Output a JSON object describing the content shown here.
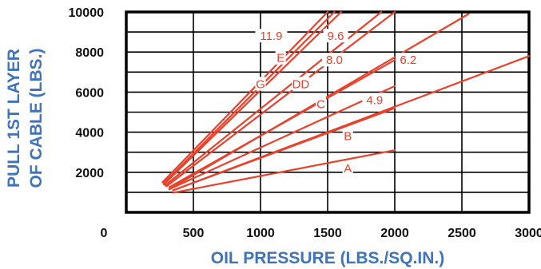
{
  "chart_data": {
    "type": "line",
    "xlabel": "OIL PRESSURE (LBS./SQ.IN.)",
    "ylabel_line1": "PULL 1ST LAYER",
    "ylabel_line2": "OF CABLE (LBS.)",
    "x_ticks": [
      "0",
      "500",
      "1000",
      "1500",
      "2000",
      "2500",
      "3000"
    ],
    "y_ticks": [
      "2000",
      "4000",
      "6000",
      "8000",
      "10000"
    ],
    "xlim": [
      0,
      3000
    ],
    "ylim": [
      0,
      10000
    ],
    "grid": true,
    "colors": {
      "curve": "#e8412c",
      "label": "#e8412c",
      "axis_title": "#3f74b8",
      "grid": "#000000"
    },
    "series": [
      {
        "name": "A",
        "x": [
          350,
          2000
        ],
        "y": [
          980,
          3100
        ]
      },
      {
        "name": "B",
        "x": [
          350,
          2000
        ],
        "y": [
          1100,
          5200
        ]
      },
      {
        "name": "4.9",
        "x": [
          350,
          3000
        ],
        "y": [
          1100,
          7800
        ]
      },
      {
        "name": "C",
        "x": [
          320,
          2000
        ],
        "y": [
          1150,
          6300
        ]
      },
      {
        "name": "6.2",
        "x": [
          320,
          2550
        ],
        "y": [
          1150,
          9900
        ]
      },
      {
        "name": "DD",
        "x": [
          320,
          2000
        ],
        "y": [
          1250,
          7600
        ]
      },
      {
        "name": "8.0",
        "x": [
          300,
          2000
        ],
        "y": [
          1300,
          10000
        ]
      },
      {
        "name": "9.6",
        "x": [
          290,
          1900
        ],
        "y": [
          1350,
          10000
        ]
      },
      {
        "name": "E",
        "x": [
          280,
          1600
        ],
        "y": [
          1400,
          10000
        ]
      },
      {
        "name": "G",
        "x": [
          280,
          1550
        ],
        "y": [
          1450,
          10000
        ]
      },
      {
        "name": "11.9",
        "x": [
          270,
          1500
        ],
        "y": [
          1500,
          10000
        ]
      }
    ],
    "annotations": [
      {
        "text": "A",
        "x": 1650,
        "y": 2200
      },
      {
        "text": "B",
        "x": 1650,
        "y": 3800
      },
      {
        "text": "4.9",
        "x": 1850,
        "y": 5600
      },
      {
        "text": "C",
        "x": 1450,
        "y": 5400
      },
      {
        "text": "6.2",
        "x": 2100,
        "y": 7600
      },
      {
        "text": "DD",
        "x": 1300,
        "y": 6400
      },
      {
        "text": "8.0",
        "x": 1550,
        "y": 7600
      },
      {
        "text": "9.6",
        "x": 1560,
        "y": 8800
      },
      {
        "text": "E",
        "x": 1150,
        "y": 7700
      },
      {
        "text": "G",
        "x": 1000,
        "y": 6400
      },
      {
        "text": "11.9",
        "x": 1080,
        "y": 8800
      }
    ]
  }
}
